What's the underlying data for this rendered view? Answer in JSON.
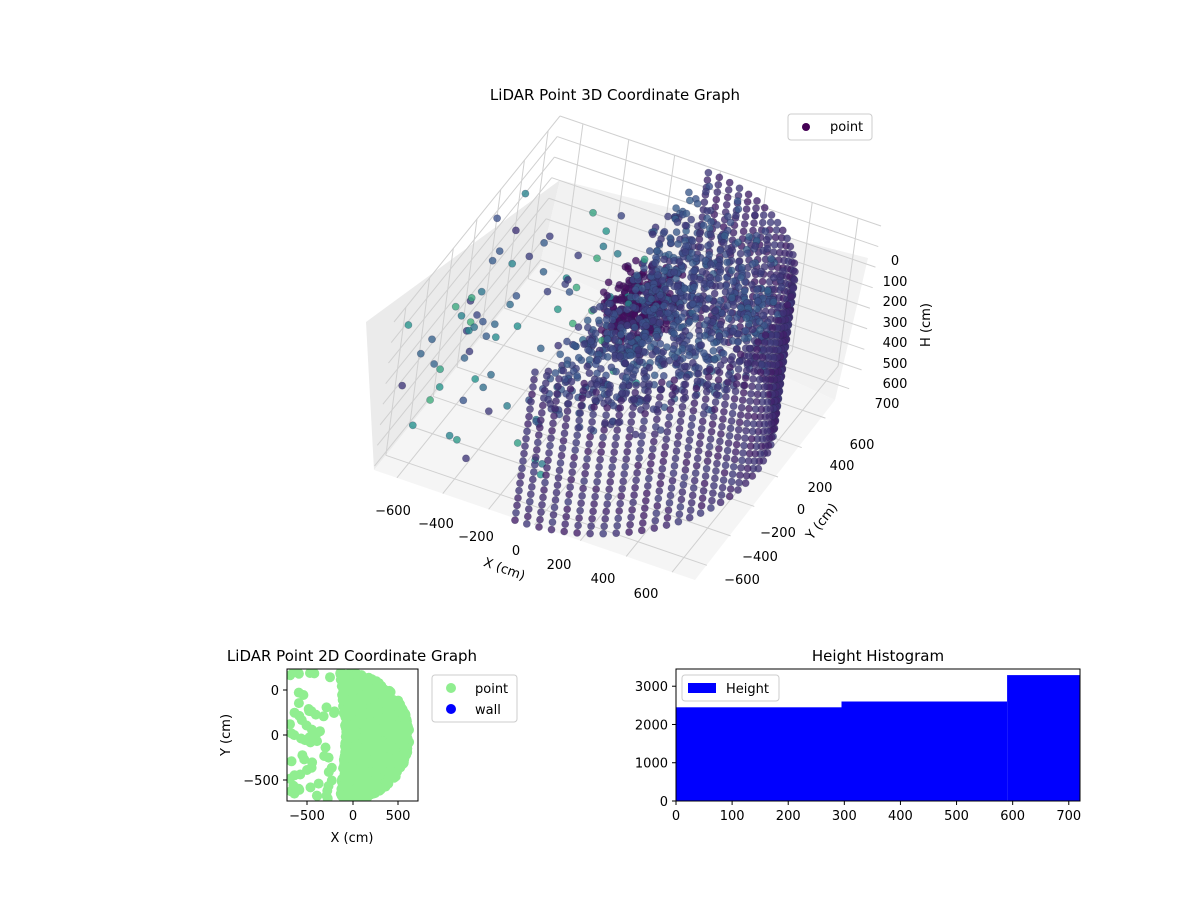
{
  "chart_data": [
    {
      "type": "scatter",
      "title": "LiDAR Point 3D Coordinate Graph",
      "xlabel": "X (cm)",
      "ylabel": "Y (cm)",
      "zlabel": "H (cm)",
      "xticks": [
        "−600",
        "−400",
        "−200",
        "0",
        "200",
        "400",
        "600"
      ],
      "yticks": [
        "−600",
        "−400",
        "−200",
        "0",
        "200",
        "400",
        "600"
      ],
      "zticks": [
        "0",
        "100",
        "200",
        "300",
        "400",
        "500",
        "600",
        "700"
      ],
      "xlim": [
        -700,
        700
      ],
      "ylim": [
        -700,
        700
      ],
      "zlim": [
        0,
        720
      ],
      "z_axis_inverted": true,
      "legend": {
        "entries": [
          "point"
        ],
        "placement": "upper-right"
      },
      "colormap": "viridis",
      "series": [
        {
          "name": "point",
          "color": "#440154"
        }
      ]
    },
    {
      "type": "scatter",
      "title": "LiDAR Point 2D Coordinate Graph",
      "xlabel": "X (cm)",
      "ylabel": "Y (cm)",
      "xticks": [
        "−500",
        "0",
        "500"
      ],
      "yticks": [
        "−500",
        "0",
        "500"
      ],
      "xlim": [
        -720,
        720
      ],
      "ylim": [
        -720,
        720
      ],
      "legend": {
        "entries": [
          "point",
          "wall"
        ],
        "placement": "outside-right"
      },
      "series": [
        {
          "name": "point",
          "color": "#90ee90"
        },
        {
          "name": "wall",
          "color": "#0000ff"
        }
      ]
    },
    {
      "type": "bar",
      "title": "Height Histogram",
      "xticks": [
        "0",
        "100",
        "200",
        "300",
        "400",
        "500",
        "600",
        "700"
      ],
      "yticks": [
        "0",
        "1000",
        "2000",
        "3000"
      ],
      "xlim": [
        0,
        720
      ],
      "ylim": [
        0,
        3450
      ],
      "bins": [
        {
          "from": 0,
          "to": 295,
          "count": 2450
        },
        {
          "from": 295,
          "to": 590,
          "count": 2600
        },
        {
          "from": 590,
          "to": 720,
          "count": 3290
        }
      ],
      "legend": {
        "entries": [
          "Height"
        ],
        "placement": "upper-left"
      },
      "series": [
        {
          "name": "Height",
          "color": "#0000ff"
        }
      ]
    }
  ]
}
